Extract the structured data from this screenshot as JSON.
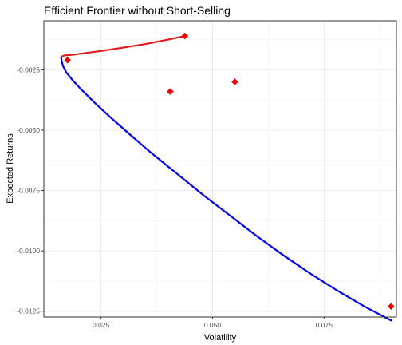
{
  "chart_data": {
    "type": "scatter",
    "title": "Efficient Frontier without Short-Selling",
    "xlabel": "Volatility",
    "ylabel": "Expected Returns",
    "xlim": [
      0.0122,
      0.0912
    ],
    "ylim": [
      -0.01274,
      -0.00047
    ],
    "x_ticks": [
      0.025,
      0.05,
      0.075
    ],
    "x_tick_labels": [
      "0.025",
      "0.050",
      "0.075"
    ],
    "y_ticks": [
      -0.0025,
      -0.005,
      -0.0075,
      -0.01,
      -0.0125
    ],
    "y_tick_labels": [
      "-0.0025",
      "-0.0050",
      "-0.0075",
      "-0.0100",
      "-0.0125"
    ],
    "grid": true,
    "theme": "bw",
    "series": [
      {
        "kind": "line",
        "color": "#e41a1c",
        "points": [
          [
            0.0438,
            -0.0011
          ],
          [
            0.04,
            -0.00125
          ],
          [
            0.035,
            -0.00143
          ],
          [
            0.03,
            -0.00158
          ],
          [
            0.025,
            -0.00172
          ],
          [
            0.021,
            -0.00182
          ],
          [
            0.0185,
            -0.00188
          ],
          [
            0.017,
            -0.0019
          ],
          [
            0.0163,
            -0.00194
          ],
          [
            0.0161,
            -0.002
          ]
        ]
      },
      {
        "kind": "line",
        "color": "#0000ee",
        "points": [
          [
            0.0161,
            -0.002
          ],
          [
            0.0162,
            -0.00215
          ],
          [
            0.0165,
            -0.00235
          ],
          [
            0.0172,
            -0.0026
          ],
          [
            0.0185,
            -0.0029
          ],
          [
            0.0205,
            -0.0033
          ],
          [
            0.0235,
            -0.00385
          ],
          [
            0.027,
            -0.00445
          ],
          [
            0.031,
            -0.0051
          ],
          [
            0.036,
            -0.0059
          ],
          [
            0.042,
            -0.0068
          ],
          [
            0.048,
            -0.0077
          ],
          [
            0.054,
            -0.00855
          ],
          [
            0.06,
            -0.0094
          ],
          [
            0.066,
            -0.0102
          ],
          [
            0.072,
            -0.01095
          ],
          [
            0.078,
            -0.01165
          ],
          [
            0.084,
            -0.0123
          ],
          [
            0.09,
            -0.01288
          ]
        ]
      },
      {
        "kind": "points",
        "color": "#ee0000",
        "points": [
          [
            0.0438,
            -0.0011
          ],
          [
            0.0175,
            -0.0021
          ],
          [
            0.0405,
            -0.0034
          ],
          [
            0.055,
            -0.003
          ],
          [
            0.09,
            -0.0123
          ]
        ]
      }
    ]
  }
}
